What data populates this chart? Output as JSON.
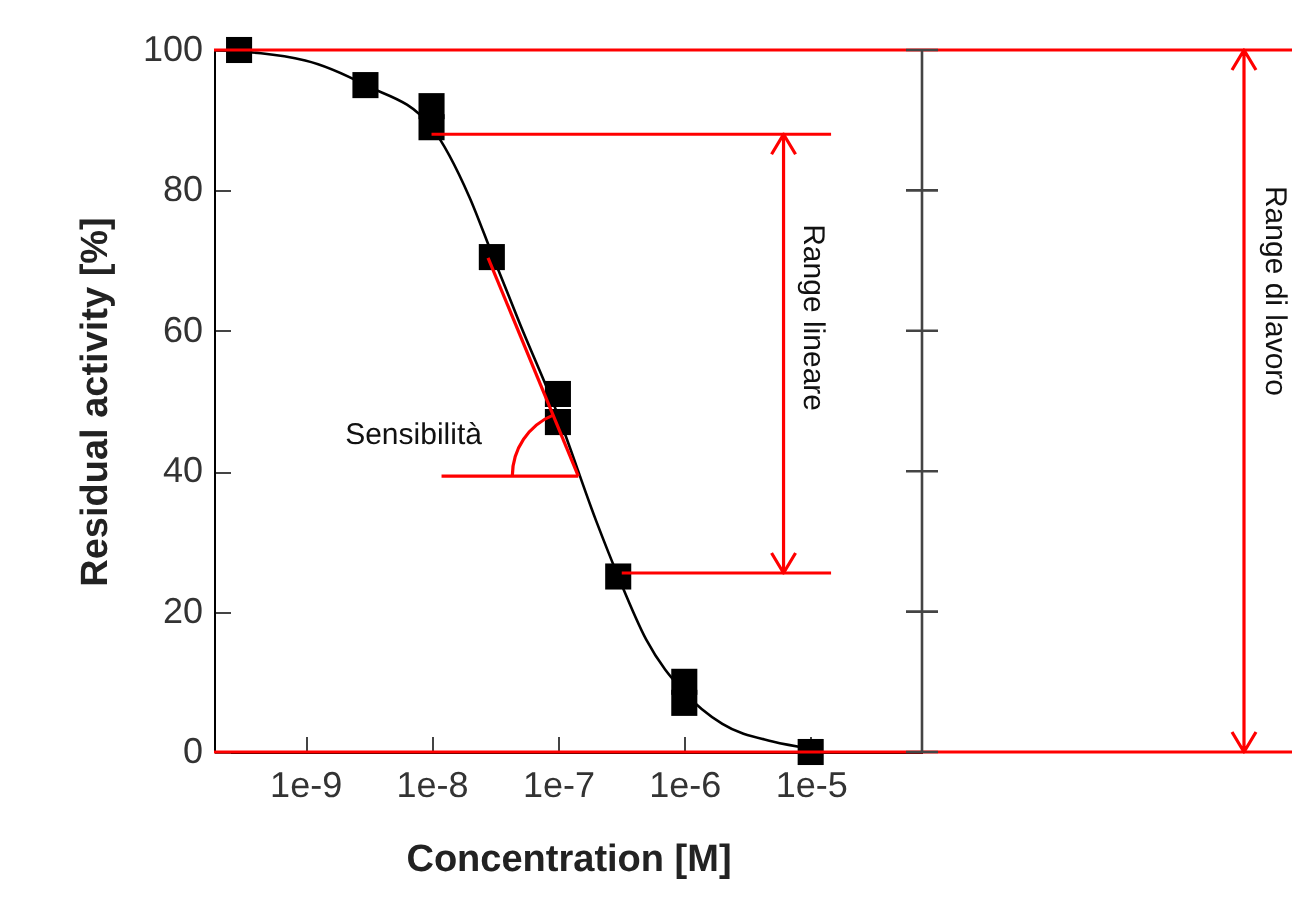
{
  "chart_data": {
    "type": "scatter",
    "xlabel": "Concentration [M]",
    "ylabel": "Residual activity [%]",
    "log": "x",
    "xlim": [
      1.9e-10,
      7.6e-05
    ],
    "ylim": [
      0,
      100
    ],
    "xticks": [
      {
        "value": 1e-09,
        "label": "1e-9"
      },
      {
        "value": 1e-08,
        "label": "1e-8"
      },
      {
        "value": 1e-07,
        "label": "1e-7"
      },
      {
        "value": 1e-06,
        "label": "1e-6"
      },
      {
        "value": 1e-05,
        "label": "1e-5"
      }
    ],
    "yticks": [
      0,
      20,
      40,
      60,
      80,
      100
    ],
    "grid": false,
    "series": [
      {
        "type": "line",
        "color": "#000000",
        "marker": "none",
        "x": [
          2e-10,
          1e-09,
          3e-09,
          1e-08,
          2e-08,
          3e-08,
          5e-08,
          1e-07,
          2e-07,
          3e-07,
          5e-07,
          1e-06,
          2e-06,
          5e-06,
          1e-05
        ],
        "values": [
          100,
          98.5,
          95,
          89,
          79,
          71,
          61,
          48,
          33,
          25,
          16,
          8.5,
          4,
          1.5,
          0.5
        ]
      },
      {
        "type": "scatter",
        "color": "#000000",
        "marker": "square",
        "x": [
          3e-10,
          3e-09,
          1e-08,
          1e-08,
          3e-08,
          1e-07,
          1e-07,
          3e-07,
          1e-06,
          1e-06,
          1e-05
        ],
        "values": [
          100,
          95,
          92,
          89,
          70.5,
          51,
          47,
          25,
          10,
          7,
          0
        ]
      },
      {
        "type": "line",
        "color": "#ff0000",
        "x": [
          2.8e-08,
          1.45e-07
        ],
        "values": [
          70.4,
          39.3
        ]
      },
      {
        "type": "line",
        "color": "#ff0000",
        "x": [
          1.2e-08,
          1.45e-07
        ],
        "values": [
          39.3,
          39.3
        ]
      },
      {
        "type": "line",
        "color": "#ff0000",
        "x": [
          1e-08,
          1.45e-05
        ],
        "values": [
          88,
          88
        ]
      },
      {
        "type": "line",
        "color": "#ff0000",
        "x": [
          3.2e-07,
          1.45e-05
        ],
        "values": [
          25.5,
          25.5
        ]
      },
      {
        "type": "line",
        "color": "#ff0000",
        "x": [
          6.1e-06,
          6.1e-06
        ],
        "values": [
          88,
          25.5
        ]
      }
    ],
    "ref_lines": [
      {
        "axis": "y",
        "value": 100,
        "color": "#ff0000"
      },
      {
        "axis": "y",
        "value": 0,
        "color": "#ff0000"
      }
    ],
    "annotations": [
      "Sensibilità",
      "Range lineare",
      "Range di lavoro"
    ]
  }
}
